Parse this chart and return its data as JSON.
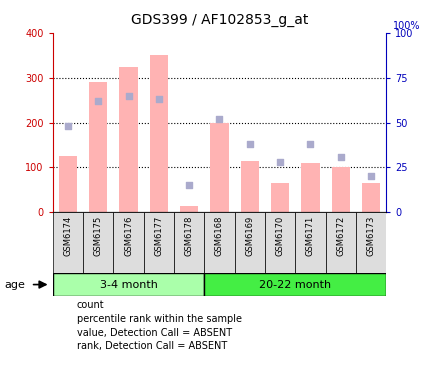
{
  "title": "GDS399 / AF102853_g_at",
  "samples": [
    "GSM6174",
    "GSM6175",
    "GSM6176",
    "GSM6177",
    "GSM6178",
    "GSM6168",
    "GSM6169",
    "GSM6170",
    "GSM6171",
    "GSM6172",
    "GSM6173"
  ],
  "groups": [
    "3-4 month",
    "20-22 month"
  ],
  "group_sizes": [
    5,
    6
  ],
  "bar_values_absent": [
    125,
    290,
    325,
    350,
    15,
    200,
    115,
    65,
    110,
    100,
    65
  ],
  "rank_dots_absent": [
    48,
    62,
    65,
    63,
    15,
    52,
    38,
    28,
    38,
    31,
    20
  ],
  "ylim_left": [
    0,
    400
  ],
  "ylim_right": [
    0,
    100
  ],
  "yticks_left": [
    0,
    100,
    200,
    300,
    400
  ],
  "yticks_right": [
    0,
    25,
    50,
    75,
    100
  ],
  "grid_lines": [
    100,
    200,
    300
  ],
  "bar_color_absent": "#FFB3B3",
  "dot_color_absent": "#AAAACC",
  "plot_bg": "white",
  "xtick_bg": "#DDDDDD",
  "group1_color": "#AAFFAA",
  "group2_color": "#44EE44",
  "left_tick_color": "#CC0000",
  "right_tick_color": "#0000BB",
  "legend_labels": [
    "count",
    "percentile rank within the sample",
    "value, Detection Call = ABSENT",
    "rank, Detection Call = ABSENT"
  ],
  "legend_colors": [
    "#CC0000",
    "#0000BB",
    "#FFB3B3",
    "#AAAACC"
  ]
}
